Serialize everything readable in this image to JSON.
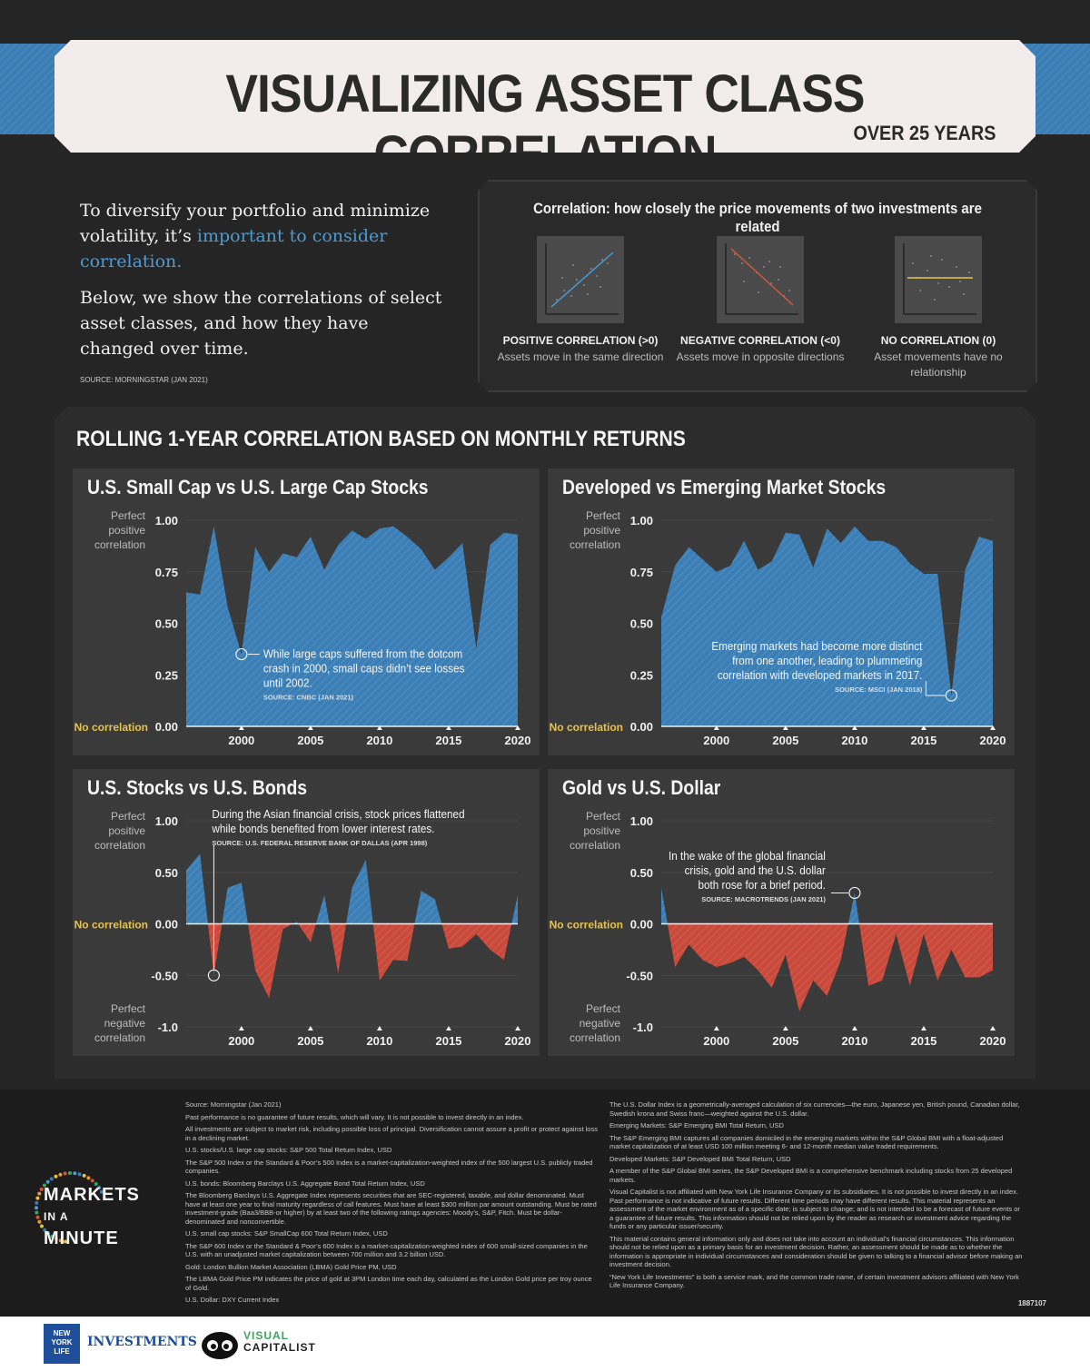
{
  "header": {
    "title": "VISUALIZING ASSET CLASS CORRELATION",
    "subtitle": "OVER 25 YEARS"
  },
  "intro": {
    "p1_a": "To diversify your portfolio and minimize volatility, it’s ",
    "p1_b": "important to consider correlation.",
    "p2": "Below, we show the correlations of select asset classes, and how they have changed over time.",
    "source": "SOURCE: MORNINGSTAR (JAN 2021)"
  },
  "explainer": {
    "heading": "Correlation: how closely the price movements of two investments are related",
    "items": [
      {
        "label": "POSITIVE CORRELATION (>0)",
        "desc": "Assets move in the same direction"
      },
      {
        "label": "NEGATIVE CORRELATION (<0)",
        "desc": "Assets move in opposite directions"
      },
      {
        "label": "NO CORRELATION (0)",
        "desc": "Asset movements have no relationship"
      }
    ]
  },
  "main_title": "ROLLING 1-YEAR CORRELATION BASED ON MONTHLY RETURNS",
  "colors": {
    "positive": "#3b7fb6",
    "negative": "#c9493b",
    "accent": "#e8c34a"
  },
  "chart_data": [
    {
      "type": "area",
      "title": "U.S. Small Cap vs U.S. Large Cap Stocks",
      "ylim": [
        0,
        1
      ],
      "yticks": [
        "1.00",
        "0.75",
        "0.50",
        "0.25",
        "0.00"
      ],
      "ytick_values": [
        1,
        0.75,
        0.5,
        0.25,
        0
      ],
      "side_labels": {
        "top": "Perfect positive correlation",
        "zero": "No correlation",
        "bottom": ""
      },
      "xticks": [
        "2000",
        "2005",
        "2010",
        "2015",
        "2020"
      ],
      "x": [
        1996,
        1997,
        1998,
        1999,
        2000,
        2001,
        2002,
        2003,
        2004,
        2005,
        2006,
        2007,
        2008,
        2009,
        2010,
        2011,
        2012,
        2013,
        2014,
        2015,
        2016,
        2017,
        2018,
        2019,
        2020
      ],
      "values": [
        0.65,
        0.64,
        0.97,
        0.58,
        0.35,
        0.87,
        0.75,
        0.84,
        0.82,
        0.92,
        0.76,
        0.88,
        0.95,
        0.91,
        0.96,
        0.97,
        0.92,
        0.86,
        0.76,
        0.82,
        0.89,
        0.38,
        0.88,
        0.94,
        0.93
      ],
      "annotation": {
        "x": 2000,
        "y": 0.35,
        "text": [
          "While large caps suffered from the dotcom",
          "crash in 2000, small caps didn’t see losses",
          "until 2002."
        ],
        "source": "SOURCE: CNBC (JAN 2021)"
      }
    },
    {
      "type": "area",
      "title": "Developed vs Emerging Market Stocks",
      "ylim": [
        0,
        1
      ],
      "yticks": [
        "1.00",
        "0.75",
        "0.50",
        "0.25",
        "0.00"
      ],
      "ytick_values": [
        1,
        0.75,
        0.5,
        0.25,
        0
      ],
      "side_labels": {
        "top": "Perfect positive correlation",
        "zero": "No correlation",
        "bottom": ""
      },
      "xticks": [
        "2000",
        "2005",
        "2010",
        "2015",
        "2020"
      ],
      "x": [
        1996,
        1997,
        1998,
        1999,
        2000,
        2001,
        2002,
        2003,
        2004,
        2005,
        2006,
        2007,
        2008,
        2009,
        2010,
        2011,
        2012,
        2013,
        2014,
        2015,
        2016,
        2017,
        2018,
        2019,
        2020
      ],
      "values": [
        0.53,
        0.78,
        0.87,
        0.81,
        0.75,
        0.78,
        0.9,
        0.76,
        0.8,
        0.94,
        0.93,
        0.77,
        0.96,
        0.89,
        0.97,
        0.9,
        0.9,
        0.87,
        0.79,
        0.74,
        0.74,
        0.15,
        0.76,
        0.92,
        0.9
      ],
      "annotation": {
        "x": 2017,
        "y": 0.15,
        "text": [
          "Emerging markets had become more distinct",
          "from one another, leading to plummeting",
          "correlation with developed markets in 2017."
        ],
        "source": "SOURCE: MSCI (JAN 2018)"
      }
    },
    {
      "type": "area",
      "title": "U.S. Stocks vs U.S. Bonds",
      "ylim": [
        -1,
        1
      ],
      "yticks": [
        "1.00",
        "0.50",
        "0.00",
        "-0.50",
        "-1.0"
      ],
      "ytick_values": [
        1,
        0.5,
        0,
        -0.5,
        -1
      ],
      "side_labels": {
        "top": "Perfect positive correlation",
        "zero": "No correlation",
        "bottom": "Perfect negative correlation"
      },
      "xticks": [
        "2000",
        "2005",
        "2010",
        "2015",
        "2020"
      ],
      "x": [
        1996,
        1997,
        1998,
        1999,
        2000,
        2001,
        2002,
        2003,
        2004,
        2005,
        2006,
        2007,
        2008,
        2009,
        2010,
        2011,
        2012,
        2013,
        2014,
        2015,
        2016,
        2017,
        2018,
        2019,
        2020
      ],
      "values": [
        0.52,
        0.68,
        -0.5,
        0.35,
        0.4,
        -0.45,
        -0.72,
        -0.05,
        0.02,
        -0.18,
        0.28,
        -0.48,
        0.35,
        0.62,
        -0.55,
        -0.35,
        -0.36,
        0.32,
        0.24,
        -0.24,
        -0.22,
        -0.1,
        -0.25,
        -0.35,
        0.28
      ],
      "annotation": {
        "x": 1998,
        "y": -0.5,
        "text": [
          "During the Asian financial crisis, stock prices flattened",
          "while bonds benefited from lower interest rates."
        ],
        "source": "SOURCE: U.S. FEDERAL RESERVE BANK OF DALLAS (APR 1998)"
      }
    },
    {
      "type": "area",
      "title": "Gold vs U.S. Dollar",
      "ylim": [
        -1,
        1
      ],
      "yticks": [
        "1.00",
        "0.50",
        "0.00",
        "-0.50",
        "-1.0"
      ],
      "ytick_values": [
        1,
        0.5,
        0,
        -0.5,
        -1
      ],
      "side_labels": {
        "top": "Perfect positive correlation",
        "zero": "No correlation",
        "bottom": "Perfect negative correlation"
      },
      "xticks": [
        "2000",
        "2005",
        "2010",
        "2015",
        "2020"
      ],
      "x": [
        1996,
        1997,
        1998,
        1999,
        2000,
        2001,
        2002,
        2003,
        2004,
        2005,
        2006,
        2007,
        2008,
        2009,
        2010,
        2011,
        2012,
        2013,
        2014,
        2015,
        2016,
        2017,
        2018,
        2019,
        2020
      ],
      "values": [
        0.35,
        -0.42,
        -0.2,
        -0.35,
        -0.42,
        -0.38,
        -0.32,
        -0.45,
        -0.62,
        -0.3,
        -0.85,
        -0.55,
        -0.7,
        -0.35,
        0.3,
        -0.6,
        -0.55,
        -0.1,
        -0.6,
        -0.1,
        -0.55,
        -0.25,
        -0.52,
        -0.52,
        -0.45
      ],
      "annotation": {
        "x": 2010,
        "y": 0.3,
        "text": [
          "In the wake of the global financial",
          "crisis, gold and the U.S. dollar",
          "both rose for a brief period."
        ],
        "source": "SOURCE: MACROTRENDS (JAN 2021)"
      }
    }
  ],
  "footer": {
    "left": [
      "Source: Morningstar (Jan 2021)",
      "Past performance is no guarantee of future results, which will vary. It is not possible to invest directly in an index.",
      "All investments are subject to market risk, including possible loss of principal. Diversification cannot assure a profit or protect against loss in a declining market.",
      "U.S. stocks/U.S. large cap stocks: S&P 500 Total Return Index, USD",
      "The S&P 500 Index or the Standard & Poor’s 500 Index is a market-capitalization-weighted index of the 500 largest U.S. publicly traded companies.",
      "U.S. bonds: Bloomberg Barclays U.S. Aggregate Bond Total Return Index, USD",
      "The Bloomberg Barclays U.S. Aggregate Index represents securities that are SEC-registered, taxable, and dollar denominated. Must have at least one year to final maturity regardless of call features. Must have at least $300 million par amount outstanding. Must be rated investment-grade (Baa3/BBB-or higher) by at least two of the following ratings agencies: Moody’s, S&P, Fitch. Must be dollar-denominated and nonconvertible.",
      "U.S. small cap stocks: S&P SmallCap 600 Total Return Index, USD",
      "The S&P 600 Index or the Standard & Poor’s 600 Index is a market-capitalization-weighted index of 600 small-sized companies in the U.S. with an unadjusted market capitalization between 700 million and 3.2 billion USD.",
      "Gold: London Bullion Market Association (LBMA) Gold Price PM, USD",
      "The LBMA Gold Price PM indicates the price of gold at 3PM London time each day, calculated as the London Gold price per troy ounce of Gold.",
      "U.S. Dollar: DXY Current Index"
    ],
    "right": [
      "The U.S. Dollar Index is a geometrically-averaged calculation of six currencies—the euro, Japanese yen, British pound, Canadian dollar, Swedish krona and Swiss franc—weighted against the U.S. dollar.",
      "Emerging Markets: S&P Emerging BMI Total Return, USD",
      "The S&P Emerging BMI captures all companies domiciled in the emerging markets within the S&P Global BMI with a float-adjusted market capitalization of at least USD 100 million meeting 6- and 12-month median value traded requirements.",
      "Developed Markets: S&P Developed BMI Total Return, USD",
      "A member of the S&P Global BMI series, the S&P Developed BMI is a comprehensive benchmark including stocks from 25 developed markets.",
      "Visual Capitalist is not affiliated with New York Life Insurance Company or its subsidiaries. It is not possible to invest directly in an index. Past performance is not indicative of future results. Different time periods may have different results. This material represents an assessment of the market environment as of a specific date; is subject to change; and is not intended to be a forecast of future events or a guarantee of future results. This information should not be relied upon by the reader as research or investment advice regarding the funds or any particular issuer/security.",
      "This material contains general information only and does not take into account an individual’s financial circumstances. This information should not be relied upon as a primary basis for an investment decision. Rather, an assessment should be made as to whether the information is appropriate in individual circumstances and consideration should be given to talking to a financial advisor before making an investment decision.",
      "“New York Life Investments” is both a service mark, and the common trade name, of certain investment advisors affiliated with New York Life Insurance Company."
    ],
    "doc_number": "1887107"
  },
  "logos": {
    "markets_in_a_minute": [
      "MARKETS",
      "IN A",
      "MINUTE"
    ],
    "nyl_box": [
      "NEW",
      "YORK",
      "LIFE"
    ],
    "nyl_text": "INVESTMENTS",
    "vc_top": "VISUAL",
    "vc_bottom": "CAPITALIST"
  }
}
